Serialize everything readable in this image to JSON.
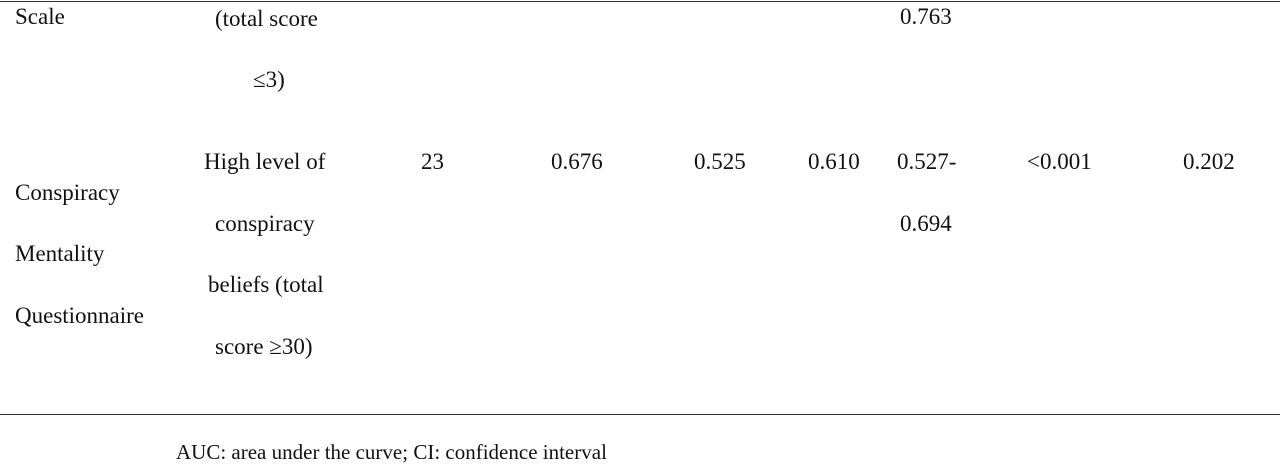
{
  "table": {
    "rows": [
      {
        "measure": [
          "Scale"
        ],
        "criterion": [
          "(total score",
          "≤3)"
        ],
        "ci": [
          "0.763"
        ]
      },
      {
        "measure": [
          "Conspiracy",
          "Mentality",
          "Questionnaire"
        ],
        "criterion": [
          "High level of",
          "conspiracy",
          "beliefs (total",
          "score ≥30)"
        ],
        "n": [
          "23"
        ],
        "auc": [
          "0.676"
        ],
        "sensitivity": [
          "0.525"
        ],
        "specificity": [
          "0.610"
        ],
        "ci": [
          "0.527-",
          "0.694"
        ],
        "p": [
          "<0.001"
        ],
        "youden": [
          "0.202"
        ]
      }
    ]
  },
  "footnote": "AUC: area under the curve; CI: confidence interval"
}
